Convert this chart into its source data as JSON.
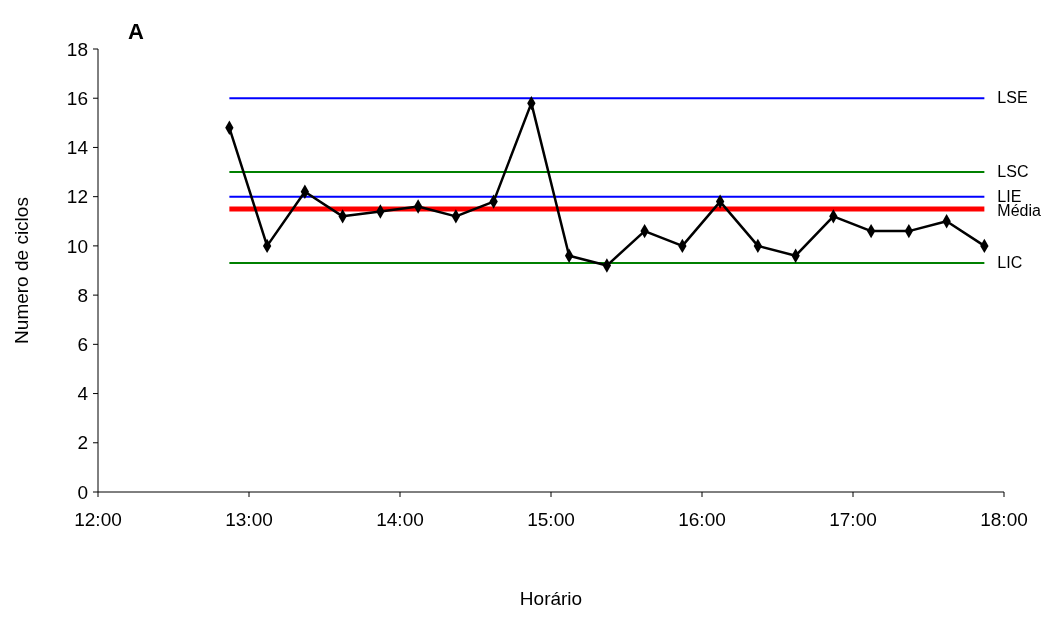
{
  "chart_data": {
    "type": "line",
    "xlabel": "Horário",
    "ylabel": "Numero de ciclos",
    "annotations": [
      "A"
    ],
    "x": [
      12.87,
      13.12,
      13.37,
      13.62,
      13.87,
      14.12,
      14.37,
      14.62,
      14.87,
      15.12,
      15.37,
      15.62,
      15.87,
      16.12,
      16.37,
      16.62,
      16.87,
      17.12,
      17.37,
      17.62,
      17.87
    ],
    "series": [
      {
        "color": "#000000",
        "values": [
          14.8,
          10,
          12.2,
          11.2,
          11.4,
          11.6,
          11.2,
          11.8,
          15.8,
          9.6,
          9.2,
          10.6,
          10,
          11.8,
          10,
          9.6,
          11.2,
          10.6,
          10.6,
          11,
          10
        ]
      }
    ],
    "xlim": [
      12,
      18
    ],
    "xticks": [
      {
        "value": 12,
        "label": "12:00"
      },
      {
        "value": 13,
        "label": "13:00"
      },
      {
        "value": 14,
        "label": "14:00"
      },
      {
        "value": 15,
        "label": "15:00"
      },
      {
        "value": 16,
        "label": "16:00"
      },
      {
        "value": 17,
        "label": "17:00"
      },
      {
        "value": 18,
        "label": "18:00"
      }
    ],
    "ylim": [
      0,
      18
    ],
    "yticks": [
      0,
      2,
      4,
      6,
      8,
      10,
      12,
      14,
      16,
      18
    ],
    "ref_lines": [
      {
        "axis": "y",
        "value": 16,
        "label": "LSE",
        "color": "#0000ff"
      },
      {
        "axis": "y",
        "value": 13,
        "label": "LSC",
        "color": "#008000"
      },
      {
        "axis": "y",
        "value": 12,
        "label": "LIE",
        "color": "#0000ff"
      },
      {
        "axis": "y",
        "value": 11.5,
        "label": "Média",
        "color": "#ff0000"
      },
      {
        "axis": "y",
        "value": 9.3,
        "label": "LIC",
        "color": "#008000"
      }
    ],
    "marker": "diamond",
    "line_style": "solid",
    "grid": false
  }
}
